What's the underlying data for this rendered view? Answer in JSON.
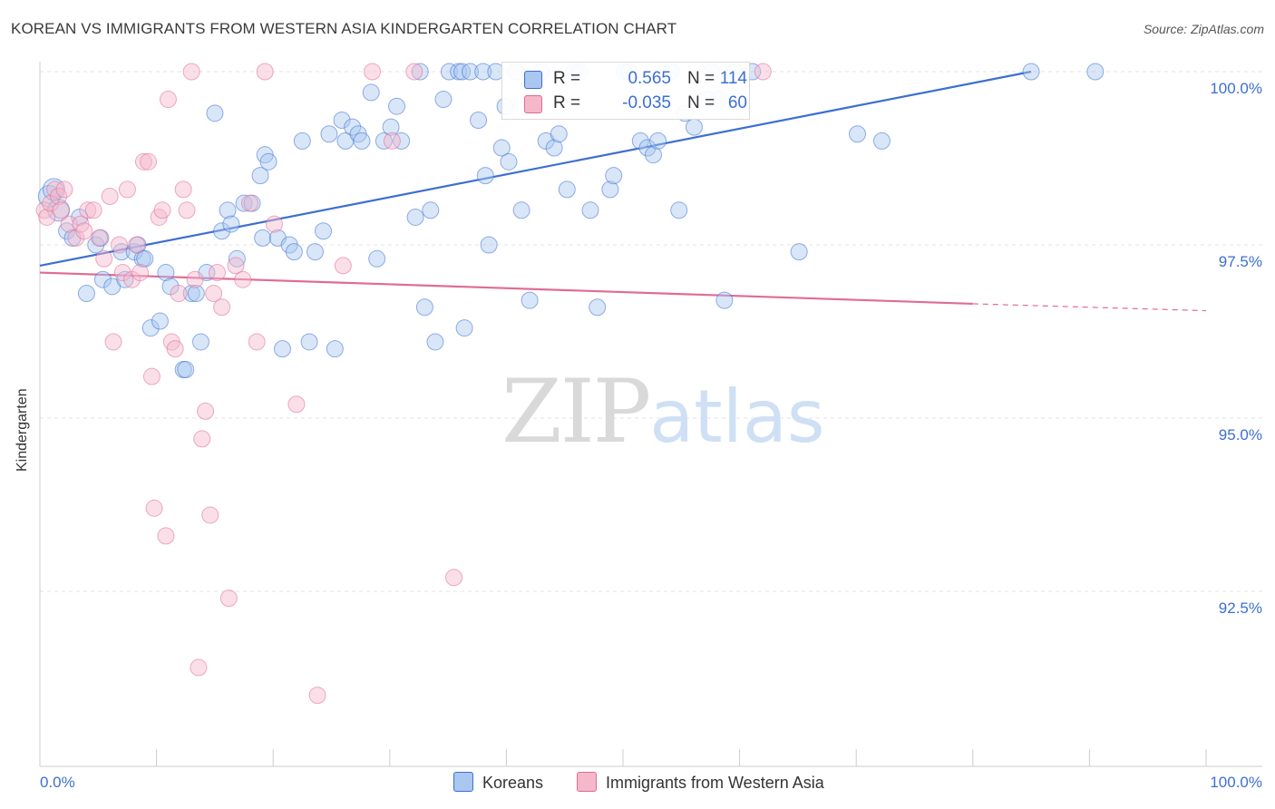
{
  "title": "KOREAN VS IMMIGRANTS FROM WESTERN ASIA KINDERGARTEN CORRELATION CHART",
  "source": "Source: ZipAtlas.com",
  "watermark": {
    "part1": "ZIP",
    "part2": "atlas"
  },
  "colors": {
    "koreans": "#3d6fd1",
    "koreans_fill": "#a9c7ef",
    "western_asia": "#e06b95",
    "western_asia_fill": "#f5b8cb",
    "grid": "#e3e3e3",
    "axis_label": "#3d6fd1"
  },
  "legend_top": {
    "rows": [
      {
        "r_label": "R =",
        "r_value": "0.565",
        "n_label": "N =",
        "n_value": "114"
      },
      {
        "r_label": "R =",
        "r_value": "-0.035",
        "n_label": "N =",
        "n_value": "60"
      }
    ]
  },
  "legend_bottom": {
    "koreans": "Koreans",
    "western_asia": "Immigrants from Western Asia"
  },
  "chart_data": {
    "type": "scatter",
    "title": "KOREAN VS IMMIGRANTS FROM WESTERN ASIA KINDERGARTEN CORRELATION CHART",
    "xlabel": "",
    "ylabel": "Kindergarten",
    "xlim": [
      0,
      100
    ],
    "ylim": [
      90.5,
      100.2
    ],
    "x_tick_labels": [
      "0.0%",
      "100.0%"
    ],
    "y_ticks": [
      92.5,
      95.0,
      97.5,
      100.0
    ],
    "y_tick_labels": [
      "92.5%",
      "95.0%",
      "97.5%",
      "100.0%"
    ],
    "grid": true,
    "legend": "bottom-center",
    "series": [
      {
        "name": "Koreans",
        "color": "#3d6fd1",
        "R": 0.565,
        "N": 114,
        "trend": {
          "x": [
            0,
            85
          ],
          "y": [
            97.2,
            100.0
          ]
        },
        "points": [
          [
            0.8,
            98.2
          ],
          [
            1.2,
            98.3
          ],
          [
            1.6,
            98.0
          ],
          [
            2.3,
            97.7
          ],
          [
            3.4,
            97.9
          ],
          [
            2.8,
            97.6
          ],
          [
            4.8,
            97.5
          ],
          [
            5.2,
            97.6
          ],
          [
            4.0,
            96.8
          ],
          [
            5.4,
            97.0
          ],
          [
            6.2,
            96.9
          ],
          [
            7.0,
            97.4
          ],
          [
            7.3,
            97.0
          ],
          [
            8.1,
            97.4
          ],
          [
            8.4,
            97.5
          ],
          [
            8.8,
            97.3
          ],
          [
            9.0,
            97.3
          ],
          [
            9.5,
            96.3
          ],
          [
            10.3,
            96.4
          ],
          [
            10.8,
            97.1
          ],
          [
            11.2,
            96.9
          ],
          [
            12.3,
            95.7
          ],
          [
            12.5,
            95.7
          ],
          [
            13.0,
            96.8
          ],
          [
            13.4,
            96.8
          ],
          [
            13.8,
            96.1
          ],
          [
            14.3,
            97.1
          ],
          [
            15.0,
            99.4
          ],
          [
            15.6,
            97.7
          ],
          [
            16.1,
            98.0
          ],
          [
            16.4,
            97.8
          ],
          [
            16.9,
            97.3
          ],
          [
            17.5,
            98.1
          ],
          [
            18.2,
            98.1
          ],
          [
            18.9,
            98.5
          ],
          [
            19.3,
            98.8
          ],
          [
            19.6,
            98.7
          ],
          [
            19.1,
            97.6
          ],
          [
            20.4,
            97.6
          ],
          [
            20.8,
            96.0
          ],
          [
            21.4,
            97.5
          ],
          [
            21.8,
            97.4
          ],
          [
            22.5,
            99.0
          ],
          [
            23.1,
            96.1
          ],
          [
            23.6,
            97.4
          ],
          [
            24.3,
            97.7
          ],
          [
            24.8,
            99.1
          ],
          [
            25.3,
            96.0
          ],
          [
            25.9,
            99.3
          ],
          [
            26.2,
            99.0
          ],
          [
            26.8,
            99.2
          ],
          [
            27.3,
            99.1
          ],
          [
            27.6,
            99.0
          ],
          [
            28.4,
            99.7
          ],
          [
            28.9,
            97.3
          ],
          [
            29.5,
            99.0
          ],
          [
            30.1,
            99.2
          ],
          [
            30.6,
            99.5
          ],
          [
            31.0,
            99.0
          ],
          [
            32.2,
            97.9
          ],
          [
            32.6,
            100.0
          ],
          [
            33.0,
            96.6
          ],
          [
            33.5,
            98.0
          ],
          [
            33.9,
            96.1
          ],
          [
            34.6,
            99.6
          ],
          [
            35.1,
            100.0
          ],
          [
            35.9,
            100.0
          ],
          [
            36.2,
            100.0
          ],
          [
            36.4,
            96.3
          ],
          [
            36.9,
            100.0
          ],
          [
            37.6,
            99.3
          ],
          [
            38.2,
            98.5
          ],
          [
            38.5,
            97.5
          ],
          [
            38.0,
            100.0
          ],
          [
            39.1,
            100.0
          ],
          [
            39.6,
            98.9
          ],
          [
            40.2,
            98.7
          ],
          [
            39.9,
            99.5
          ],
          [
            40.8,
            100.0
          ],
          [
            41.3,
            98.0
          ],
          [
            42.0,
            96.7
          ],
          [
            43.0,
            100.0
          ],
          [
            43.4,
            99.0
          ],
          [
            44.1,
            98.9
          ],
          [
            44.5,
            99.1
          ],
          [
            45.2,
            98.3
          ],
          [
            45.8,
            100.0
          ],
          [
            46.3,
            100.0
          ],
          [
            47.2,
            98.0
          ],
          [
            47.8,
            96.6
          ],
          [
            48.9,
            98.3
          ],
          [
            49.2,
            98.5
          ],
          [
            50.1,
            100.0
          ],
          [
            50.5,
            100.0
          ],
          [
            51.5,
            99.0
          ],
          [
            52.1,
            98.9
          ],
          [
            52.6,
            98.8
          ],
          [
            53.0,
            99.0
          ],
          [
            53.5,
            99.6
          ],
          [
            54.1,
            100.0
          ],
          [
            54.8,
            98.0
          ],
          [
            55.3,
            99.4
          ],
          [
            56.1,
            99.2
          ],
          [
            57.2,
            99.6
          ],
          [
            57.6,
            100.0
          ],
          [
            58.2,
            99.6
          ],
          [
            58.7,
            96.7
          ],
          [
            59.6,
            100.0
          ],
          [
            61.1,
            100.0
          ],
          [
            65.1,
            97.4
          ],
          [
            70.1,
            99.1
          ],
          [
            72.2,
            99.0
          ],
          [
            85.0,
            100.0
          ],
          [
            90.5,
            100.0
          ]
        ]
      },
      {
        "name": "Immigrants from Western Asia",
        "color": "#e06b95",
        "R": -0.035,
        "N": 60,
        "trend": {
          "x": [
            0,
            80,
            100
          ],
          "y": [
            97.1,
            96.65,
            96.55
          ]
        },
        "points": [
          [
            0.4,
            98.0
          ],
          [
            0.6,
            97.9
          ],
          [
            0.9,
            98.1
          ],
          [
            1.3,
            98.3
          ],
          [
            1.6,
            98.2
          ],
          [
            1.8,
            98.0
          ],
          [
            2.1,
            98.3
          ],
          [
            2.5,
            97.8
          ],
          [
            3.1,
            97.6
          ],
          [
            3.5,
            97.8
          ],
          [
            3.8,
            97.7
          ],
          [
            4.1,
            98.0
          ],
          [
            4.6,
            98.0
          ],
          [
            5.1,
            97.6
          ],
          [
            5.5,
            97.3
          ],
          [
            6.0,
            98.2
          ],
          [
            6.3,
            96.1
          ],
          [
            6.8,
            97.5
          ],
          [
            7.1,
            97.1
          ],
          [
            7.5,
            98.3
          ],
          [
            7.9,
            97.0
          ],
          [
            8.3,
            97.5
          ],
          [
            8.6,
            97.1
          ],
          [
            8.9,
            98.7
          ],
          [
            9.3,
            98.7
          ],
          [
            9.6,
            95.6
          ],
          [
            9.8,
            93.7
          ],
          [
            10.2,
            97.9
          ],
          [
            10.5,
            98.0
          ],
          [
            10.8,
            93.3
          ],
          [
            11.0,
            99.6
          ],
          [
            11.3,
            96.1
          ],
          [
            11.6,
            96.0
          ],
          [
            11.9,
            96.8
          ],
          [
            12.3,
            98.3
          ],
          [
            12.6,
            98.0
          ],
          [
            13.0,
            100.0
          ],
          [
            13.3,
            97.0
          ],
          [
            13.6,
            91.4
          ],
          [
            13.9,
            94.7
          ],
          [
            14.2,
            95.1
          ],
          [
            14.6,
            93.6
          ],
          [
            14.9,
            96.8
          ],
          [
            15.2,
            97.1
          ],
          [
            15.6,
            96.6
          ],
          [
            16.2,
            92.4
          ],
          [
            16.8,
            97.2
          ],
          [
            17.4,
            97.0
          ],
          [
            18.0,
            98.1
          ],
          [
            18.6,
            96.1
          ],
          [
            19.3,
            100.0
          ],
          [
            20.1,
            97.8
          ],
          [
            22.0,
            95.2
          ],
          [
            23.8,
            91.0
          ],
          [
            26.0,
            97.2
          ],
          [
            28.5,
            100.0
          ],
          [
            30.2,
            99.0
          ],
          [
            32.1,
            100.0
          ],
          [
            35.5,
            92.7
          ],
          [
            62.0,
            100.0
          ]
        ]
      }
    ]
  }
}
